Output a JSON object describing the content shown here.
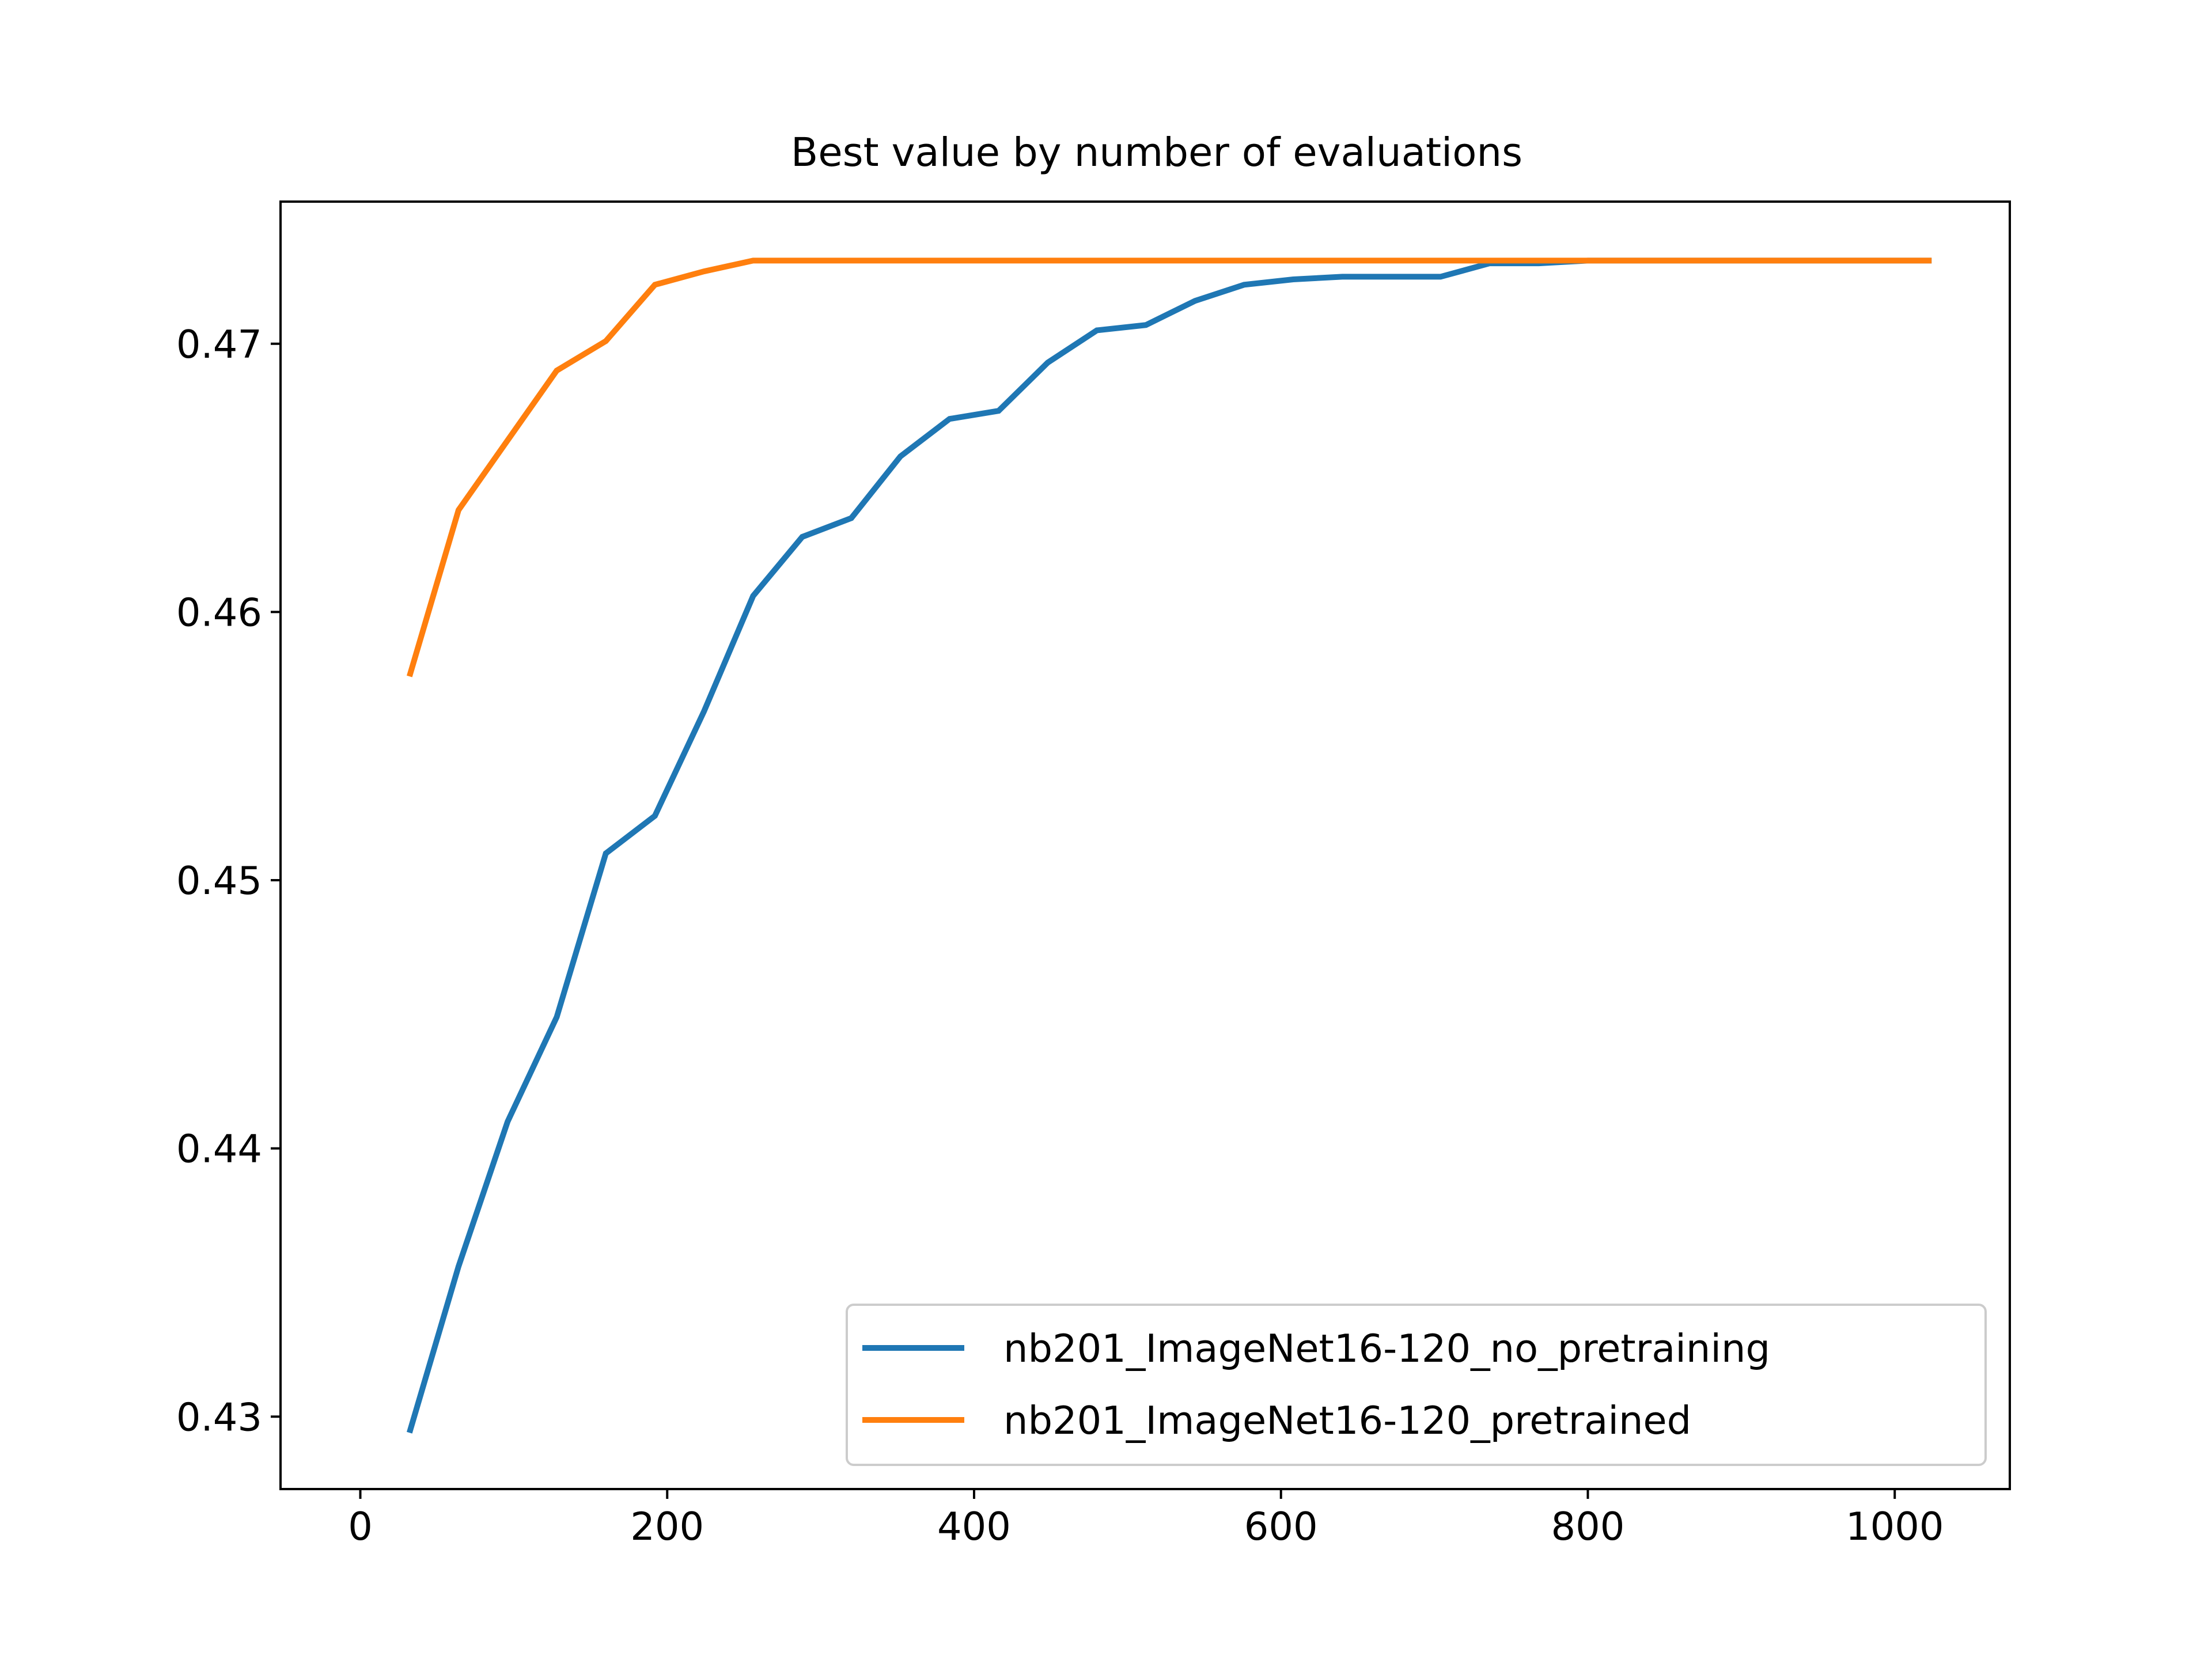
{
  "chart_data": {
    "type": "line",
    "title": "Best value by number of evaluations",
    "xlabel": "",
    "ylabel": "",
    "xlim": [
      -52,
      1075
    ],
    "ylim": [
      0.4273,
      0.4753
    ],
    "xticks": [
      0,
      200,
      400,
      600,
      800,
      1000
    ],
    "yticks": [
      0.43,
      0.44,
      0.45,
      0.46,
      0.47
    ],
    "xtick_labels": [
      "0",
      "200",
      "400",
      "600",
      "800",
      "1000"
    ],
    "ytick_labels": [
      "0.43",
      "0.44",
      "0.45",
      "0.46",
      "0.47"
    ],
    "grid": false,
    "legend_position": "lower-right",
    "series": [
      {
        "name": "nb201_ImageNet16-120_no_pretraining",
        "color": "#1f77b4",
        "x": [
          32,
          64,
          96,
          128,
          160,
          192,
          224,
          256,
          288,
          320,
          352,
          384,
          416,
          448,
          480,
          512,
          544,
          576,
          608,
          640,
          672,
          704,
          736,
          768,
          800,
          832,
          864,
          896,
          928,
          960,
          992,
          1024
        ],
        "y": [
          0.4294,
          0.4356,
          0.441,
          0.4449,
          0.451,
          0.4524,
          0.4563,
          0.4606,
          0.4628,
          0.4635,
          0.4658,
          0.4672,
          0.4675,
          0.4693,
          0.4705,
          0.4707,
          0.4716,
          0.4722,
          0.4724,
          0.4725,
          0.4725,
          0.4725,
          0.473,
          0.473,
          0.4731,
          0.4731,
          0.4731,
          0.4731,
          0.4731,
          0.4731,
          0.4731,
          0.4731
        ]
      },
      {
        "name": "nb201_ImageNet16-120_pretrained",
        "color": "#ff7f0e",
        "x": [
          32,
          64,
          96,
          128,
          160,
          192,
          224,
          256,
          288,
          320,
          352,
          384,
          416,
          448,
          480,
          512,
          544,
          576,
          608,
          640,
          672,
          704,
          736,
          768,
          800,
          832,
          864,
          896,
          928,
          960,
          992,
          1024
        ],
        "y": [
          0.4576,
          0.4638,
          0.4664,
          0.469,
          0.4701,
          0.4722,
          0.4727,
          0.4731,
          0.4731,
          0.4731,
          0.4731,
          0.4731,
          0.4731,
          0.4731,
          0.4731,
          0.4731,
          0.4731,
          0.4731,
          0.4731,
          0.4731,
          0.4731,
          0.4731,
          0.4731,
          0.4731,
          0.4731,
          0.4731,
          0.4731,
          0.4731,
          0.4731,
          0.4731,
          0.4731,
          0.4731
        ]
      }
    ]
  }
}
